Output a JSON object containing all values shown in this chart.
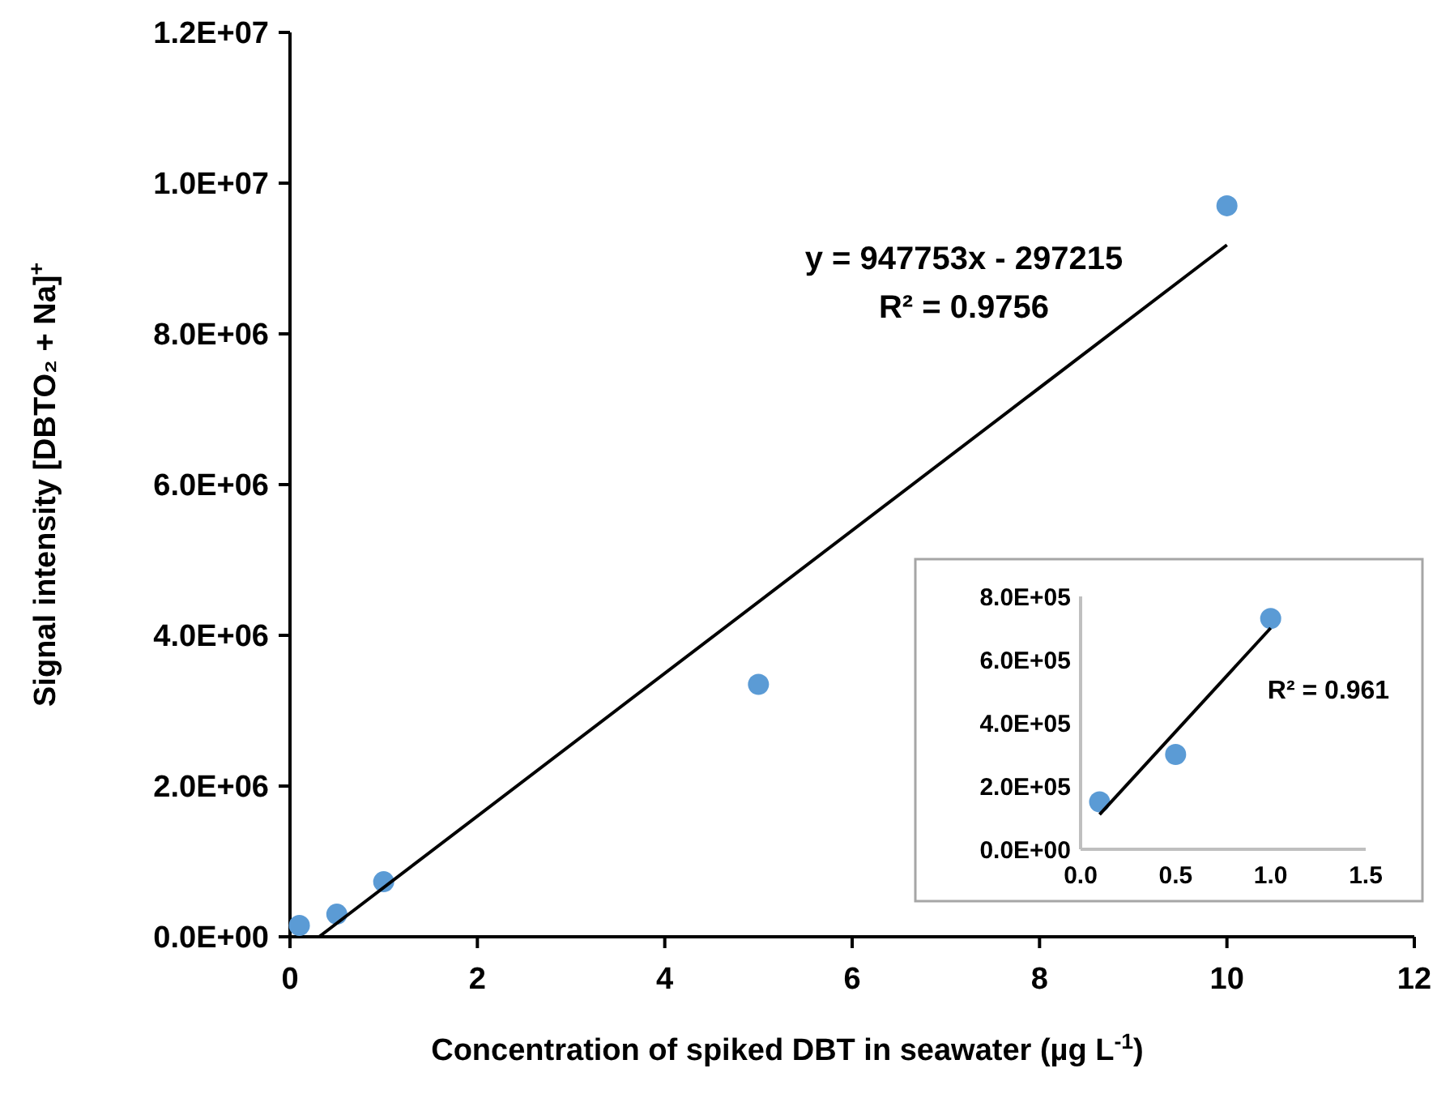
{
  "chart_data": [
    {
      "type": "scatter",
      "xlabel": "Concentration of spiked DBT in seawater (µg L$^{-1}$)",
      "ylabel": "Signal intensity [DBTO₂ + Na]$^{+}$",
      "marker": "circle",
      "grid": false,
      "xlim": [
        0,
        12
      ],
      "xticks": [
        0,
        2,
        4,
        6,
        8,
        10,
        12
      ],
      "ylim": [
        0,
        12000000
      ],
      "yticks": [
        {
          "value": 0,
          "label": "0.0E+00"
        },
        {
          "value": 2000000,
          "label": "2.0E+06"
        },
        {
          "value": 4000000,
          "label": "4.0E+06"
        },
        {
          "value": 6000000,
          "label": "6.0E+06"
        },
        {
          "value": 8000000,
          "label": "8.0E+06"
        },
        {
          "value": 10000000,
          "label": "1.0E+07"
        },
        {
          "value": 12000000,
          "label": "1.2E+07"
        }
      ],
      "series": [
        {
          "color": "#5b9bd5",
          "x": [
            0.1,
            0.5,
            1,
            5,
            10
          ],
          "values": [
            150000,
            300000,
            730000,
            3350000,
            9700000
          ]
        },
        {
          "type": "line",
          "color": "#000000",
          "marker": "none",
          "x": [
            0.31,
            10
          ],
          "values": [
            0,
            9180000
          ]
        }
      ],
      "annotations": [
        "y = 947753x - 297215",
        "R² = 0.9756"
      ]
    },
    {
      "type": "scatter",
      "marker": "circle",
      "grid": false,
      "xlim": [
        0,
        1.5
      ],
      "xticks": [
        {
          "value": 0,
          "label": "0.0"
        },
        {
          "value": 0.5,
          "label": "0.5"
        },
        {
          "value": 1,
          "label": "1.0"
        },
        {
          "value": 1.5,
          "label": "1.5"
        }
      ],
      "ylim": [
        0,
        800000
      ],
      "yticks": [
        {
          "value": 0,
          "label": "0.0E+00"
        },
        {
          "value": 200000,
          "label": "2.0E+05"
        },
        {
          "value": 400000,
          "label": "4.0E+05"
        },
        {
          "value": 600000,
          "label": "6.0E+05"
        },
        {
          "value": 800000,
          "label": "8.0E+05"
        }
      ],
      "series": [
        {
          "color": "#5b9bd5",
          "x": [
            0.1,
            0.5,
            1
          ],
          "values": [
            150000,
            300000,
            730000
          ]
        },
        {
          "type": "line",
          "color": "#000000",
          "marker": "none",
          "x": [
            0.1,
            1
          ],
          "values": [
            110000,
            700000
          ]
        }
      ],
      "annotations": [
        "R² = 0.961"
      ]
    }
  ]
}
